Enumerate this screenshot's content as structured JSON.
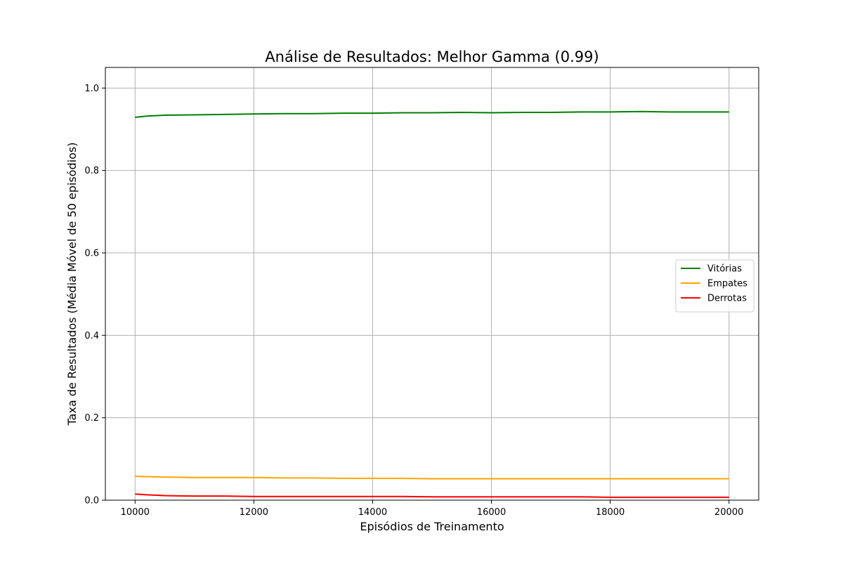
{
  "chart_data": {
    "type": "line",
    "title": "Análise de Resultados: Melhor Gamma (0.99)",
    "xlabel": "Episódios de Treinamento",
    "ylabel": "Taxa de Resultados (Média Móvel de 50 episódios)",
    "xlim": [
      9500,
      20500
    ],
    "ylim": [
      0,
      1.05
    ],
    "xticks": [
      10000,
      12000,
      14000,
      16000,
      18000,
      20000
    ],
    "yticks": [
      0.0,
      0.2,
      0.4,
      0.6,
      0.8,
      1.0
    ],
    "xtick_labels": [
      "10000",
      "12000",
      "14000",
      "16000",
      "18000",
      "20000"
    ],
    "ytick_labels": [
      "0.0",
      "0.2",
      "0.4",
      "0.6",
      "0.8",
      "1.0"
    ],
    "grid": true,
    "legend_position": "center-right",
    "x": [
      10000,
      10200,
      10500,
      11000,
      11500,
      12000,
      12500,
      13000,
      13500,
      14000,
      14500,
      15000,
      15500,
      16000,
      16500,
      17000,
      17500,
      18000,
      18500,
      19000,
      19500,
      20000
    ],
    "series": [
      {
        "name": "Vitórias",
        "color": "#008000",
        "values": [
          0.929,
          0.932,
          0.934,
          0.935,
          0.936,
          0.937,
          0.938,
          0.938,
          0.939,
          0.939,
          0.94,
          0.94,
          0.941,
          0.94,
          0.941,
          0.941,
          0.942,
          0.942,
          0.943,
          0.942,
          0.942,
          0.942
        ]
      },
      {
        "name": "Empates",
        "color": "#ffa500",
        "values": [
          0.058,
          0.057,
          0.056,
          0.055,
          0.055,
          0.055,
          0.054,
          0.054,
          0.053,
          0.053,
          0.053,
          0.052,
          0.052,
          0.052,
          0.052,
          0.052,
          0.052,
          0.052,
          0.052,
          0.052,
          0.052,
          0.052
        ]
      },
      {
        "name": "Derrotas",
        "color": "#ff0000",
        "values": [
          0.015,
          0.013,
          0.011,
          0.01,
          0.01,
          0.009,
          0.009,
          0.009,
          0.009,
          0.009,
          0.009,
          0.008,
          0.008,
          0.008,
          0.008,
          0.008,
          0.008,
          0.007,
          0.007,
          0.007,
          0.007,
          0.007
        ]
      }
    ]
  }
}
